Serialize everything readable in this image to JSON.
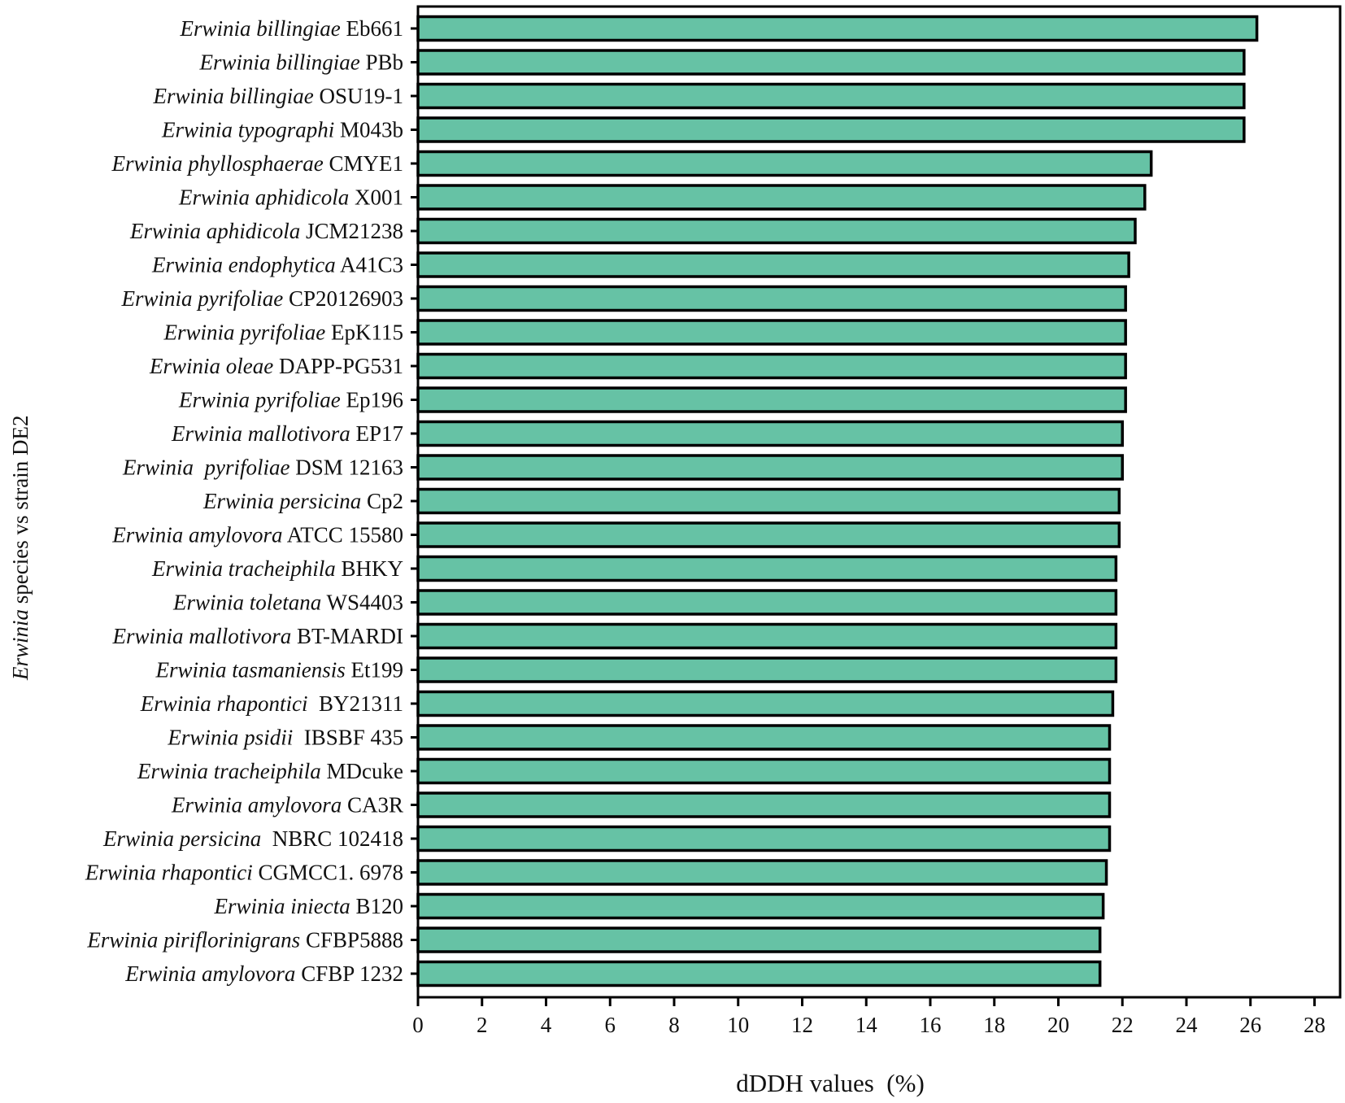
{
  "chart_data": {
    "type": "bar",
    "orientation": "horizontal",
    "categories": [
      {
        "species": "Erwinia billingiae",
        "strain": "Eb661"
      },
      {
        "species": "Erwinia billingiae",
        "strain": "PBb"
      },
      {
        "species": "Erwinia billingiae",
        "strain": "OSU19-1"
      },
      {
        "species": "Erwinia typographi",
        "strain": "M043b"
      },
      {
        "species": "Erwinia phyllosphaerae",
        "strain": "CMYE1"
      },
      {
        "species": "Erwinia aphidicola",
        "strain": "X001"
      },
      {
        "species": "Erwinia aphidicola",
        "strain": "JCM21238"
      },
      {
        "species": "Erwinia endophytica",
        "strain": "A41C3"
      },
      {
        "species": "Erwinia pyrifoliae",
        "strain": "CP20126903"
      },
      {
        "species": "Erwinia pyrifoliae",
        "strain": "EpK115"
      },
      {
        "species": "Erwinia oleae",
        "strain": "DAPP-PG531"
      },
      {
        "species": "Erwinia pyrifoliae",
        "strain": "Ep196"
      },
      {
        "species": "Erwinia mallotivora",
        "strain": "EP17"
      },
      {
        "species": "Erwinia  pyrifoliae",
        "strain": "DSM 12163"
      },
      {
        "species": "Erwinia persicina",
        "strain": "Cp2"
      },
      {
        "species": "Erwinia amylovora",
        "strain": "ATCC 15580"
      },
      {
        "species": "Erwinia tracheiphila",
        "strain": "BHKY"
      },
      {
        "species": "Erwinia toletana",
        "strain": "WS4403"
      },
      {
        "species": "Erwinia mallotivora",
        "strain": "BT-MARDI"
      },
      {
        "species": "Erwinia tasmaniensis",
        "strain": "Et199"
      },
      {
        "species": "Erwinia rhapontici",
        "strain": " BY21311"
      },
      {
        "species": "Erwinia psidii",
        "strain": " IBSBF 435"
      },
      {
        "species": "Erwinia tracheiphila",
        "strain": "MDcuke"
      },
      {
        "species": "Erwinia amylovora",
        "strain": "CA3R"
      },
      {
        "species": "Erwinia persicina",
        "strain": " NBRC 102418"
      },
      {
        "species": "Erwinia rhapontici",
        "strain": "CGMCC1. 6978"
      },
      {
        "species": "Erwinia iniecta",
        "strain": "B120"
      },
      {
        "species": "Erwinia piriflorinigrans",
        "strain": "CFBP5888"
      },
      {
        "species": "Erwinia amylovora",
        "strain": "CFBP 1232"
      }
    ],
    "values": [
      26.2,
      25.8,
      25.8,
      25.8,
      22.9,
      22.7,
      22.4,
      22.2,
      22.1,
      22.1,
      22.1,
      22.1,
      22.0,
      22.0,
      21.9,
      21.9,
      21.8,
      21.8,
      21.8,
      21.8,
      21.7,
      21.6,
      21.6,
      21.6,
      21.6,
      21.5,
      21.4,
      21.3,
      21.3
    ],
    "xlabel": "dDDH values  (%)",
    "ylabel_italic": "Erwinia",
    "ylabel_rest": " species vs strain DE2",
    "xlim": [
      0,
      28.8
    ],
    "xticks": [
      0,
      2,
      4,
      6,
      8,
      10,
      12,
      14,
      16,
      18,
      20,
      22,
      24,
      26,
      28
    ],
    "grid": false,
    "legend": "none",
    "bar_color": "#66c2a5",
    "bar_edge_color": "#000000"
  }
}
